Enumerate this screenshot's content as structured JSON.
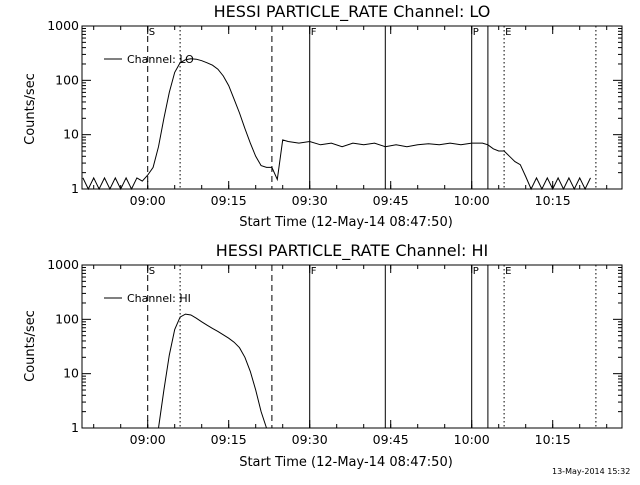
{
  "footer": {
    "timestamp": "13-May-2014 15:32"
  },
  "chart_data": [
    {
      "type": "line",
      "title": "HESSI PARTICLE_RATE Channel: LO",
      "xlabel": "Start Time (12-May-14 08:47:50)",
      "ylabel": "Counts/sec",
      "y_scale": "log",
      "ylim": [
        1,
        1000
      ],
      "xlim": [
        "08:47:50",
        "10:27:50"
      ],
      "y_ticks": [
        "1",
        "10",
        "100",
        "1000"
      ],
      "x_ticks": [
        "09:00",
        "09:15",
        "09:30",
        "09:45",
        "10:00",
        "10:15"
      ],
      "legend": {
        "position": "top-left",
        "entries": [
          "Channel: LO"
        ]
      },
      "grid": false,
      "markers": [
        {
          "label": "S",
          "time": "09:00",
          "style": "dashed"
        },
        {
          "label": "",
          "time": "09:06",
          "style": "dotted"
        },
        {
          "label": "",
          "time": "09:23",
          "style": "dashed"
        },
        {
          "label": "F",
          "time": "09:30",
          "style": "solid"
        },
        {
          "label": "",
          "time": "09:44",
          "style": "solid"
        },
        {
          "label": "P",
          "time": "10:00",
          "style": "solid"
        },
        {
          "label": "",
          "time": "10:03",
          "style": "solid"
        },
        {
          "label": "E",
          "time": "10:06",
          "style": "dotted"
        },
        {
          "label": "",
          "time": "10:23",
          "style": "dotted"
        }
      ],
      "series": [
        {
          "name": "Channel: LO",
          "x": [
            "08:48",
            "08:49",
            "08:50",
            "08:51",
            "08:52",
            "08:53",
            "08:54",
            "08:55",
            "08:56",
            "08:57",
            "08:58",
            "08:59",
            "09:00",
            "09:01",
            "09:02",
            "09:03",
            "09:04",
            "09:05",
            "09:06",
            "09:07",
            "09:08",
            "09:09",
            "09:10",
            "09:11",
            "09:12",
            "09:13",
            "09:14",
            "09:15",
            "09:16",
            "09:17",
            "09:18",
            "09:19",
            "09:20",
            "09:21",
            "09:22",
            "09:23",
            "09:24",
            "09:25",
            "09:26",
            "09:28",
            "09:30",
            "09:32",
            "09:34",
            "09:36",
            "09:38",
            "09:40",
            "09:42",
            "09:44",
            "09:46",
            "09:48",
            "09:50",
            "09:52",
            "09:54",
            "09:56",
            "09:58",
            "10:00",
            "10:02",
            "10:03",
            "10:04",
            "10:05",
            "10:06",
            "10:07",
            "10:08",
            "10:09",
            "10:10",
            "10:11",
            "10:12",
            "10:13",
            "10:14",
            "10:15",
            "10:16",
            "10:17",
            "10:18",
            "10:19",
            "10:20",
            "10:21",
            "10:22"
          ],
          "values": [
            1.6,
            1,
            1.6,
            1,
            1.6,
            1,
            1.6,
            1,
            1.6,
            1,
            1.6,
            1.4,
            1.8,
            2.5,
            6,
            20,
            60,
            140,
            210,
            240,
            250,
            245,
            230,
            210,
            190,
            160,
            120,
            80,
            45,
            25,
            13,
            7,
            4,
            2.7,
            2.5,
            2.5,
            1.5,
            8,
            7.5,
            7,
            7.5,
            6.5,
            7,
            6,
            7,
            6.5,
            7,
            6,
            6.5,
            6,
            6.5,
            6.8,
            6.5,
            7,
            6.5,
            7,
            7,
            6.5,
            5.5,
            5,
            5,
            4,
            3.2,
            2.8,
            1.7,
            1,
            1.6,
            1,
            1.6,
            1,
            1.6,
            1,
            1.6,
            1,
            1.6,
            1,
            1.6
          ]
        }
      ]
    },
    {
      "type": "line",
      "title": "HESSI PARTICLE_RATE Channel: HI",
      "xlabel": "Start Time (12-May-14 08:47:50)",
      "ylabel": "Counts/sec",
      "y_scale": "log",
      "ylim": [
        1,
        1000
      ],
      "xlim": [
        "08:47:50",
        "10:27:50"
      ],
      "y_ticks": [
        "1",
        "10",
        "100",
        "1000"
      ],
      "x_ticks": [
        "09:00",
        "09:15",
        "09:30",
        "09:45",
        "10:00",
        "10:15"
      ],
      "legend": {
        "position": "top-left",
        "entries": [
          "Channel: HI"
        ]
      },
      "grid": false,
      "markers": [
        {
          "label": "S",
          "time": "09:00",
          "style": "dashed"
        },
        {
          "label": "",
          "time": "09:06",
          "style": "dotted"
        },
        {
          "label": "",
          "time": "09:23",
          "style": "dashed"
        },
        {
          "label": "F",
          "time": "09:30",
          "style": "solid"
        },
        {
          "label": "",
          "time": "09:44",
          "style": "solid"
        },
        {
          "label": "P",
          "time": "10:00",
          "style": "solid"
        },
        {
          "label": "",
          "time": "10:03",
          "style": "solid"
        },
        {
          "label": "E",
          "time": "10:06",
          "style": "dotted"
        },
        {
          "label": "",
          "time": "10:23",
          "style": "dotted"
        }
      ],
      "series": [
        {
          "name": "Channel: HI",
          "x": [
            "09:02",
            "09:03",
            "09:04",
            "09:05",
            "09:06",
            "09:07",
            "09:08",
            "09:09",
            "09:10",
            "09:11",
            "09:12",
            "09:13",
            "09:14",
            "09:15",
            "09:16",
            "09:17",
            "09:18",
            "09:19",
            "09:20",
            "09:21",
            "09:22"
          ],
          "values": [
            1,
            5,
            22,
            65,
            110,
            125,
            120,
            105,
            90,
            78,
            68,
            60,
            52,
            45,
            38,
            30,
            20,
            11,
            5,
            2,
            1
          ]
        }
      ]
    }
  ]
}
